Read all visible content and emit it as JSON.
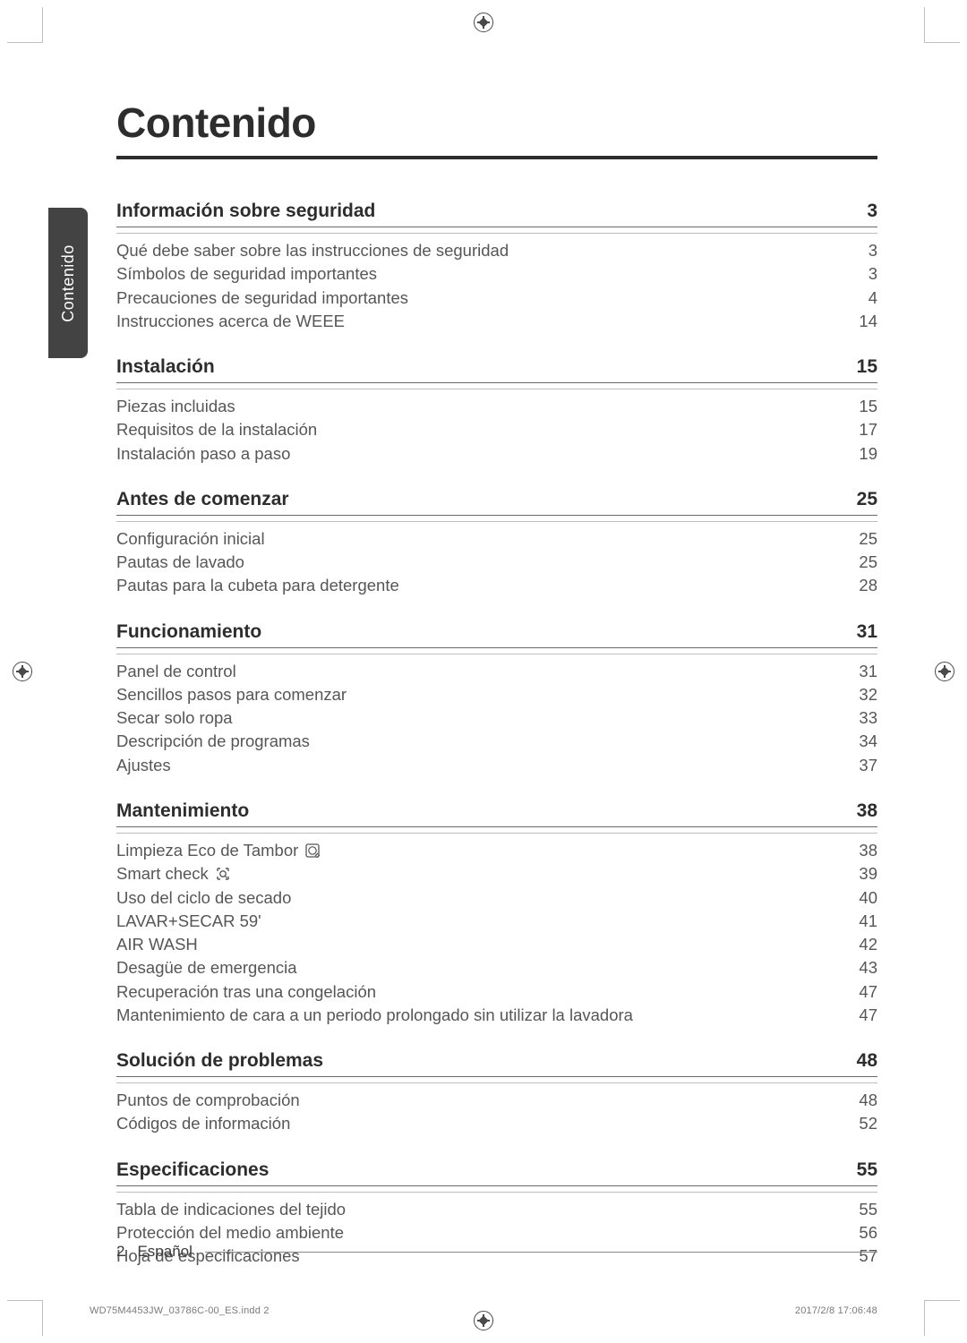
{
  "page": {
    "title": "Contenido",
    "side_tab": "Contenido",
    "page_number": "2",
    "language_label": "Español"
  },
  "toc": {
    "sections": [
      {
        "title": "Información sobre seguridad",
        "page": "3",
        "items": [
          {
            "label": "Qué debe saber sobre las instrucciones de seguridad",
            "page": "3"
          },
          {
            "label": "Símbolos de seguridad importantes",
            "page": "3"
          },
          {
            "label": "Precauciones de seguridad importantes",
            "page": "4"
          },
          {
            "label": "Instrucciones acerca de WEEE",
            "page": "14"
          }
        ]
      },
      {
        "title": "Instalación",
        "page": "15",
        "items": [
          {
            "label": "Piezas incluidas",
            "page": "15"
          },
          {
            "label": "Requisitos de la instalación",
            "page": "17"
          },
          {
            "label": "Instalación paso a paso",
            "page": "19"
          }
        ]
      },
      {
        "title": "Antes de comenzar",
        "page": "25",
        "items": [
          {
            "label": "Configuración inicial",
            "page": "25"
          },
          {
            "label": "Pautas de lavado",
            "page": "25"
          },
          {
            "label": "Pautas para la cubeta para detergente",
            "page": "28"
          }
        ]
      },
      {
        "title": "Funcionamiento",
        "page": "31",
        "items": [
          {
            "label": "Panel de control",
            "page": "31"
          },
          {
            "label": "Sencillos pasos para comenzar",
            "page": "32"
          },
          {
            "label": "Secar solo ropa",
            "page": "33"
          },
          {
            "label": "Descripción de programas",
            "page": "34"
          },
          {
            "label": "Ajustes",
            "page": "37"
          }
        ]
      },
      {
        "title": "Mantenimiento",
        "page": "38",
        "items": [
          {
            "label": "Limpieza Eco de Tambor",
            "page": "38",
            "icon": "drum"
          },
          {
            "label": "Smart check",
            "page": "39",
            "icon": "smartcheck"
          },
          {
            "label": "Uso del ciclo de secado",
            "page": "40"
          },
          {
            "label": "LAVAR+SECAR 59'",
            "page": "41"
          },
          {
            "label": "AIR WASH",
            "page": "42"
          },
          {
            "label": "Desagüe de emergencia",
            "page": "43"
          },
          {
            "label": "Recuperación tras una congelación",
            "page": "47"
          },
          {
            "label": "Mantenimiento de cara a un periodo prolongado sin utilizar la lavadora",
            "page": "47"
          }
        ]
      },
      {
        "title": "Solución de problemas",
        "page": "48",
        "items": [
          {
            "label": "Puntos de comprobación",
            "page": "48"
          },
          {
            "label": "Códigos de información",
            "page": "52"
          }
        ]
      },
      {
        "title": "Especificaciones",
        "page": "55",
        "items": [
          {
            "label": "Tabla de indicaciones del tejido",
            "page": "55"
          },
          {
            "label": "Protección del medio ambiente",
            "page": "56"
          },
          {
            "label": "Hoja de especificaciones",
            "page": "57"
          }
        ]
      }
    ]
  },
  "print_meta": {
    "file": "WD75M4453JW_03786C-00_ES.indd   2",
    "timestamp": "2017/2/8   17:06:48"
  },
  "style": {
    "icon_color": "#565656"
  }
}
